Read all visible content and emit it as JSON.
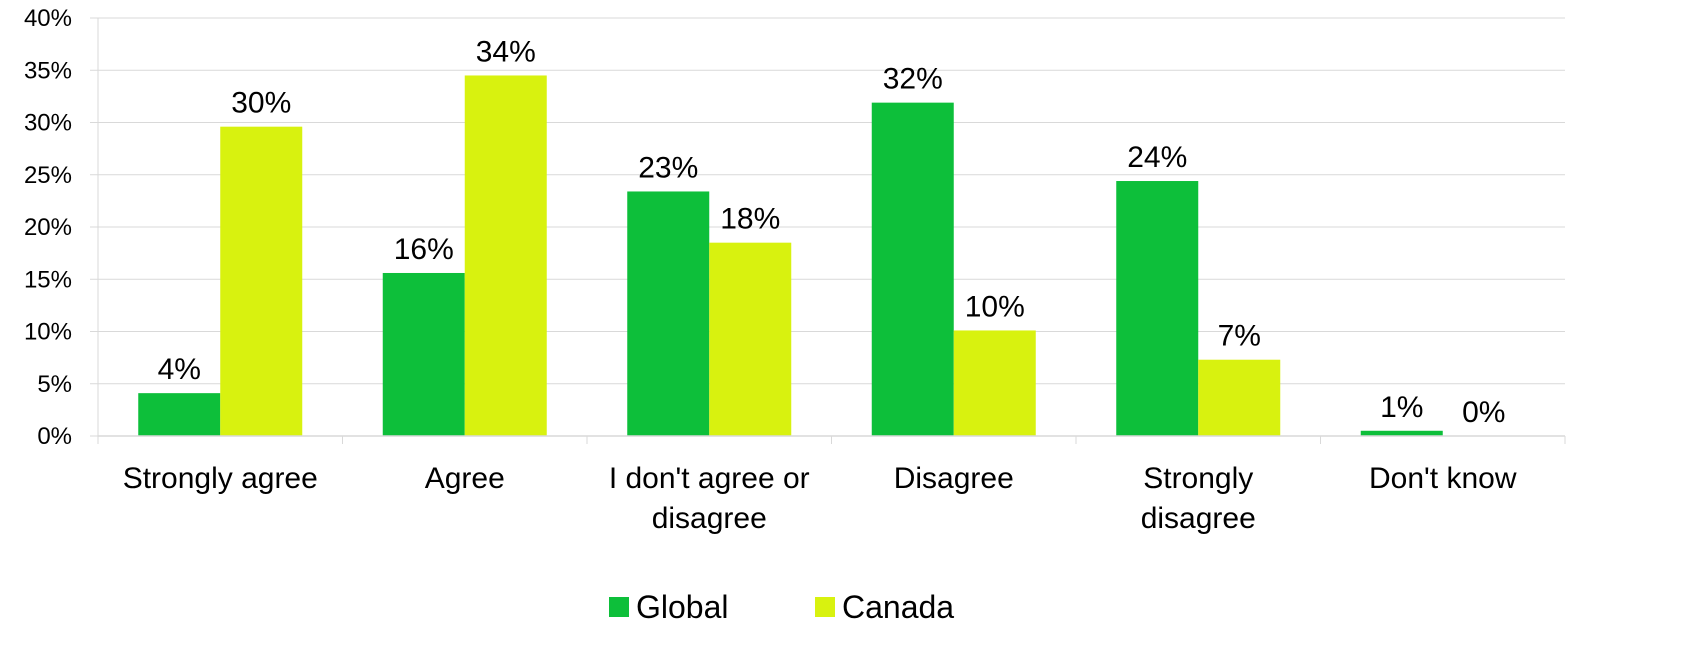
{
  "chart_data": {
    "type": "bar",
    "categories": [
      [
        "Strongly agree"
      ],
      [
        "Agree"
      ],
      [
        "I don't agree or",
        "disagree"
      ],
      [
        "Disagree"
      ],
      [
        "Strongly",
        "disagree"
      ],
      [
        "Don't know"
      ]
    ],
    "series": [
      {
        "name": "Global",
        "color": "#0dbf3a",
        "values": [
          4,
          16,
          23,
          32,
          24,
          1
        ],
        "value_positions": [
          4.1,
          15.6,
          23.4,
          31.9,
          24.4,
          0.5
        ],
        "labels": [
          "4%",
          "16%",
          "23%",
          "32%",
          "24%",
          "1%"
        ]
      },
      {
        "name": "Canada",
        "color": "#d8f20f",
        "values": [
          30,
          34,
          18,
          10,
          7,
          0
        ],
        "value_positions": [
          29.6,
          34.5,
          18.5,
          10.1,
          7.3,
          0
        ],
        "labels": [
          "30%",
          "34%",
          "18%",
          "10%",
          "7%",
          "0%"
        ]
      }
    ],
    "ylim": [
      0,
      40
    ],
    "yticks": [
      0,
      5,
      10,
      15,
      20,
      25,
      30,
      35,
      40
    ],
    "ytick_labels": [
      "0%",
      "5%",
      "10%",
      "15%",
      "20%",
      "25%",
      "30%",
      "35%",
      "40%"
    ],
    "grid": true,
    "legend_position": "bottom"
  }
}
